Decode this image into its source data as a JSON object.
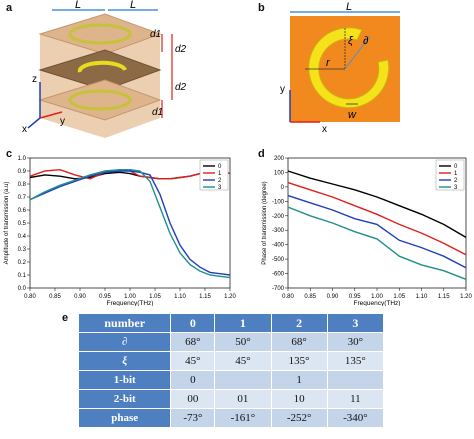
{
  "panels": {
    "a": "a",
    "b": "b",
    "c": "c",
    "d": "d",
    "e": "e"
  },
  "panel_a": {
    "L_left": "L",
    "L_right": "L",
    "d1_top": "d1",
    "d2_top": "d2",
    "d2_bottom": "d2",
    "d1_bottom": "d1",
    "axis_x": "x",
    "axis_y": "y",
    "axis_z": "z"
  },
  "panel_b": {
    "L": "L",
    "xi": "ξ",
    "partial": "∂",
    "r": "r",
    "w": "w",
    "axis_x": "x",
    "axis_y": "y"
  },
  "colors": {
    "s0": "#000000",
    "s1": "#e0201b",
    "s2": "#1f3fbf",
    "s3": "#1e8f8a",
    "header": "#4e7fc0",
    "cell": "#c4d5ea",
    "orange": "#f2891f",
    "yellow": "#f6e21a"
  },
  "chart_data": [
    {
      "type": "line",
      "xlabel": "Frequency(THz)",
      "ylabel": "Amplitude of transmission (a.u)",
      "xlim": [
        0.8,
        1.2
      ],
      "ylim": [
        0.0,
        1.0
      ],
      "x_ticks": [
        "0.80",
        "0.85",
        "0.90",
        "0.95",
        "1.00",
        "1.05",
        "1.10",
        "1.15",
        "1.20"
      ],
      "y_ticks": [
        "0.0",
        "0.1",
        "0.2",
        "0.3",
        "0.4",
        "0.5",
        "0.6",
        "0.7",
        "0.8",
        "0.9",
        "1.0"
      ],
      "legend": [
        "0",
        "1",
        "2",
        "3"
      ],
      "legend_position": "top-right",
      "series": [
        {
          "name": "0",
          "x": [
            0.8,
            0.83,
            0.86,
            0.89,
            0.92,
            0.95,
            0.98,
            1.0,
            1.02,
            1.04,
            1.06,
            1.08,
            1.1,
            1.12,
            1.14,
            1.16,
            1.18,
            1.2
          ],
          "y": [
            0.85,
            0.87,
            0.86,
            0.84,
            0.85,
            0.88,
            0.89,
            0.88,
            0.86,
            0.85,
            0.84,
            0.84,
            0.85,
            0.86,
            0.88,
            0.91,
            0.91,
            0.88
          ]
        },
        {
          "name": "1",
          "x": [
            0.8,
            0.83,
            0.86,
            0.89,
            0.92,
            0.95,
            0.98,
            1.0,
            1.02,
            1.04,
            1.06,
            1.08,
            1.1,
            1.12,
            1.14,
            1.16,
            1.18,
            1.2
          ],
          "y": [
            0.86,
            0.9,
            0.91,
            0.87,
            0.84,
            0.89,
            0.91,
            0.9,
            0.86,
            0.85,
            0.84,
            0.84,
            0.85,
            0.86,
            0.88,
            0.91,
            0.91,
            0.88
          ]
        },
        {
          "name": "2",
          "x": [
            0.8,
            0.83,
            0.86,
            0.89,
            0.92,
            0.95,
            0.98,
            1.0,
            1.02,
            1.04,
            1.06,
            1.08,
            1.1,
            1.12,
            1.14,
            1.16,
            1.18,
            1.2
          ],
          "y": [
            0.68,
            0.73,
            0.78,
            0.82,
            0.86,
            0.89,
            0.9,
            0.9,
            0.89,
            0.87,
            0.72,
            0.5,
            0.33,
            0.22,
            0.16,
            0.12,
            0.11,
            0.1
          ]
        },
        {
          "name": "3",
          "x": [
            0.8,
            0.83,
            0.86,
            0.89,
            0.92,
            0.95,
            0.98,
            1.0,
            1.02,
            1.04,
            1.06,
            1.08,
            1.1,
            1.12,
            1.14,
            1.16,
            1.18,
            1.2
          ],
          "y": [
            0.68,
            0.74,
            0.79,
            0.83,
            0.87,
            0.9,
            0.91,
            0.91,
            0.9,
            0.82,
            0.62,
            0.42,
            0.27,
            0.18,
            0.13,
            0.1,
            0.09,
            0.08
          ]
        }
      ]
    },
    {
      "type": "line",
      "xlabel": "Frequency(THz)",
      "ylabel": "Phase of transmission (degree)",
      "xlim": [
        0.8,
        1.2
      ],
      "ylim": [
        -700,
        200
      ],
      "x_ticks": [
        "0.80",
        "0.85",
        "0.90",
        "0.95",
        "1.00",
        "1.05",
        "1.10",
        "1.15",
        "1.20"
      ],
      "y_ticks": [
        "200",
        "100",
        "0",
        "-100",
        "-200",
        "-300",
        "-400",
        "-500",
        "-600",
        "-700"
      ],
      "legend": [
        "0",
        "1",
        "2",
        "3"
      ],
      "legend_position": "top-right",
      "series": [
        {
          "name": "0",
          "x": [
            0.8,
            0.85,
            0.9,
            0.95,
            1.0,
            1.05,
            1.1,
            1.15,
            1.2
          ],
          "y": [
            110,
            60,
            20,
            -20,
            -70,
            -130,
            -190,
            -260,
            -350
          ]
        },
        {
          "name": "1",
          "x": [
            0.8,
            0.85,
            0.9,
            0.95,
            1.0,
            1.05,
            1.1,
            1.15,
            1.2
          ],
          "y": [
            30,
            -20,
            -70,
            -130,
            -190,
            -260,
            -320,
            -390,
            -470
          ]
        },
        {
          "name": "2",
          "x": [
            0.8,
            0.85,
            0.9,
            0.95,
            1.0,
            1.05,
            1.1,
            1.15,
            1.2
          ],
          "y": [
            -60,
            -110,
            -160,
            -220,
            -260,
            -370,
            -420,
            -480,
            -560
          ]
        },
        {
          "name": "3",
          "x": [
            0.8,
            0.85,
            0.9,
            0.95,
            1.0,
            1.05,
            1.1,
            1.15,
            1.2
          ],
          "y": [
            -140,
            -200,
            -250,
            -310,
            -360,
            -480,
            -540,
            -580,
            -640
          ]
        }
      ]
    }
  ],
  "table": {
    "header": [
      "number",
      "0",
      "1",
      "2",
      "3"
    ],
    "rows": [
      [
        "∂",
        "68°",
        "50°",
        "68°",
        "30°"
      ],
      [
        "ξ",
        "45°",
        "45°",
        "135°",
        "135°"
      ],
      [
        "1-bit",
        "0",
        "",
        "1",
        ""
      ],
      [
        "2-bit",
        "00",
        "01",
        "10",
        "11"
      ],
      [
        "phase",
        "-73°",
        "-161°",
        "-252°",
        "-340°"
      ]
    ]
  }
}
